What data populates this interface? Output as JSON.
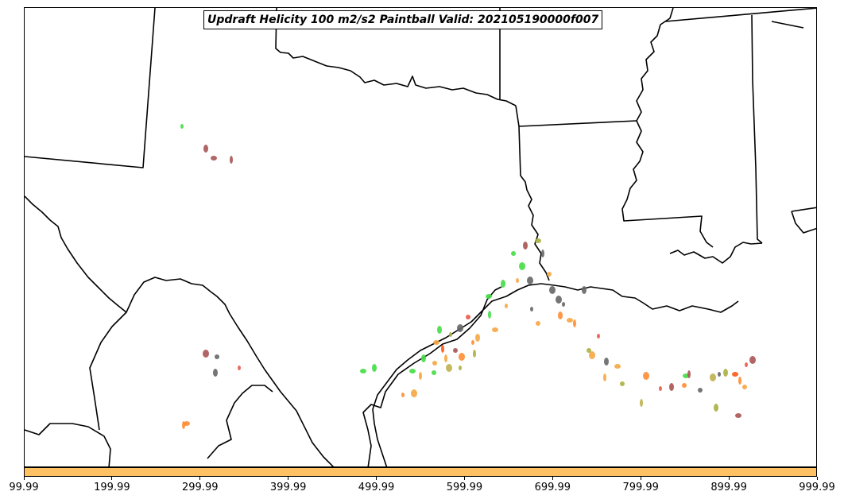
{
  "title": "Updraft Helicity 100 m2/s2 Paintball Valid: 202105190000f007",
  "colorbar": {
    "color": "#FFC164",
    "tick_labels": [
      "99.99",
      "199.99",
      "299.99",
      "399.99",
      "499.99",
      "599.99",
      "699.99",
      "799.99",
      "899.99",
      "999.99"
    ]
  },
  "colors": {
    "boundary": "#000000",
    "member_palette": [
      "#44DD44",
      "#FF8C33",
      "#F5A642",
      "#A85454",
      "#666666",
      "#E85A4A",
      "#AAB040",
      "#FF5511",
      "#C0B050",
      "#55CC55"
    ]
  },
  "map": {
    "type": "paintball",
    "features": [
      "state-boundaries",
      "coastline",
      "international-border"
    ]
  }
}
